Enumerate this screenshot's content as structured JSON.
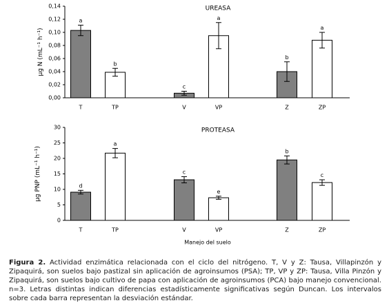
{
  "chart_data": [
    {
      "type": "bar",
      "title": "UREASA",
      "ylabel": "µg N (mL⁻¹ h⁻¹)",
      "xlabel": "",
      "ylim": [
        0,
        0.14
      ],
      "yticks": [
        "0,00",
        "0,02",
        "0,04",
        "0,06",
        "0,08",
        "0,10",
        "0,12",
        "0,14"
      ],
      "categories": [
        "T",
        "TP",
        "V",
        "VP",
        "Z",
        "ZP"
      ],
      "values": [
        0.103,
        0.039,
        0.007,
        0.095,
        0.04,
        0.088
      ],
      "errors": [
        0.008,
        0.006,
        0.003,
        0.02,
        0.015,
        0.012
      ],
      "letters": [
        "a",
        "b",
        "c",
        "a",
        "b",
        "a"
      ],
      "fills": [
        "#808080",
        "#ffffff",
        "#808080",
        "#ffffff",
        "#808080",
        "#ffffff"
      ]
    },
    {
      "type": "bar",
      "title": "PROTEASA",
      "ylabel": "µg PNP (mL⁻¹ h⁻¹)",
      "xlabel": "Manejo del suelo",
      "ylim": [
        0,
        30
      ],
      "yticks": [
        "0",
        "5",
        "10",
        "15",
        "20",
        "25",
        "30"
      ],
      "categories": [
        "T",
        "TP",
        "V",
        "VP",
        "Z",
        "ZP"
      ],
      "values": [
        9.1,
        21.7,
        13.1,
        7.3,
        19.5,
        12.2
      ],
      "errors": [
        0.6,
        1.5,
        1.0,
        0.5,
        1.3,
        0.9
      ],
      "letters": [
        "d",
        "a",
        "c",
        "e",
        "b",
        "c"
      ],
      "fills": [
        "#808080",
        "#ffffff",
        "#808080",
        "#ffffff",
        "#808080",
        "#ffffff"
      ]
    }
  ],
  "caption": {
    "label": "Figura 2.",
    "text": " Actividad enzimática relacionada con el ciclo del nitrógeno. T, V y Z: Tausa, Villapinzón y Zipaquirá, son suelos bajo pastizal sin aplicación de agroinsumos (PSA); TP, VP y ZP: Tausa, Villa Pinzón y Zipaquirá, son suelos bajo cultivo de papa con aplicación de agroinsumos (PCA) bajo manejo convencional. n=3. Letras distintas indican diferencias estadísticamente significativas según Duncan. Los intervalos sobre cada barra representan la desviación estándar."
  }
}
